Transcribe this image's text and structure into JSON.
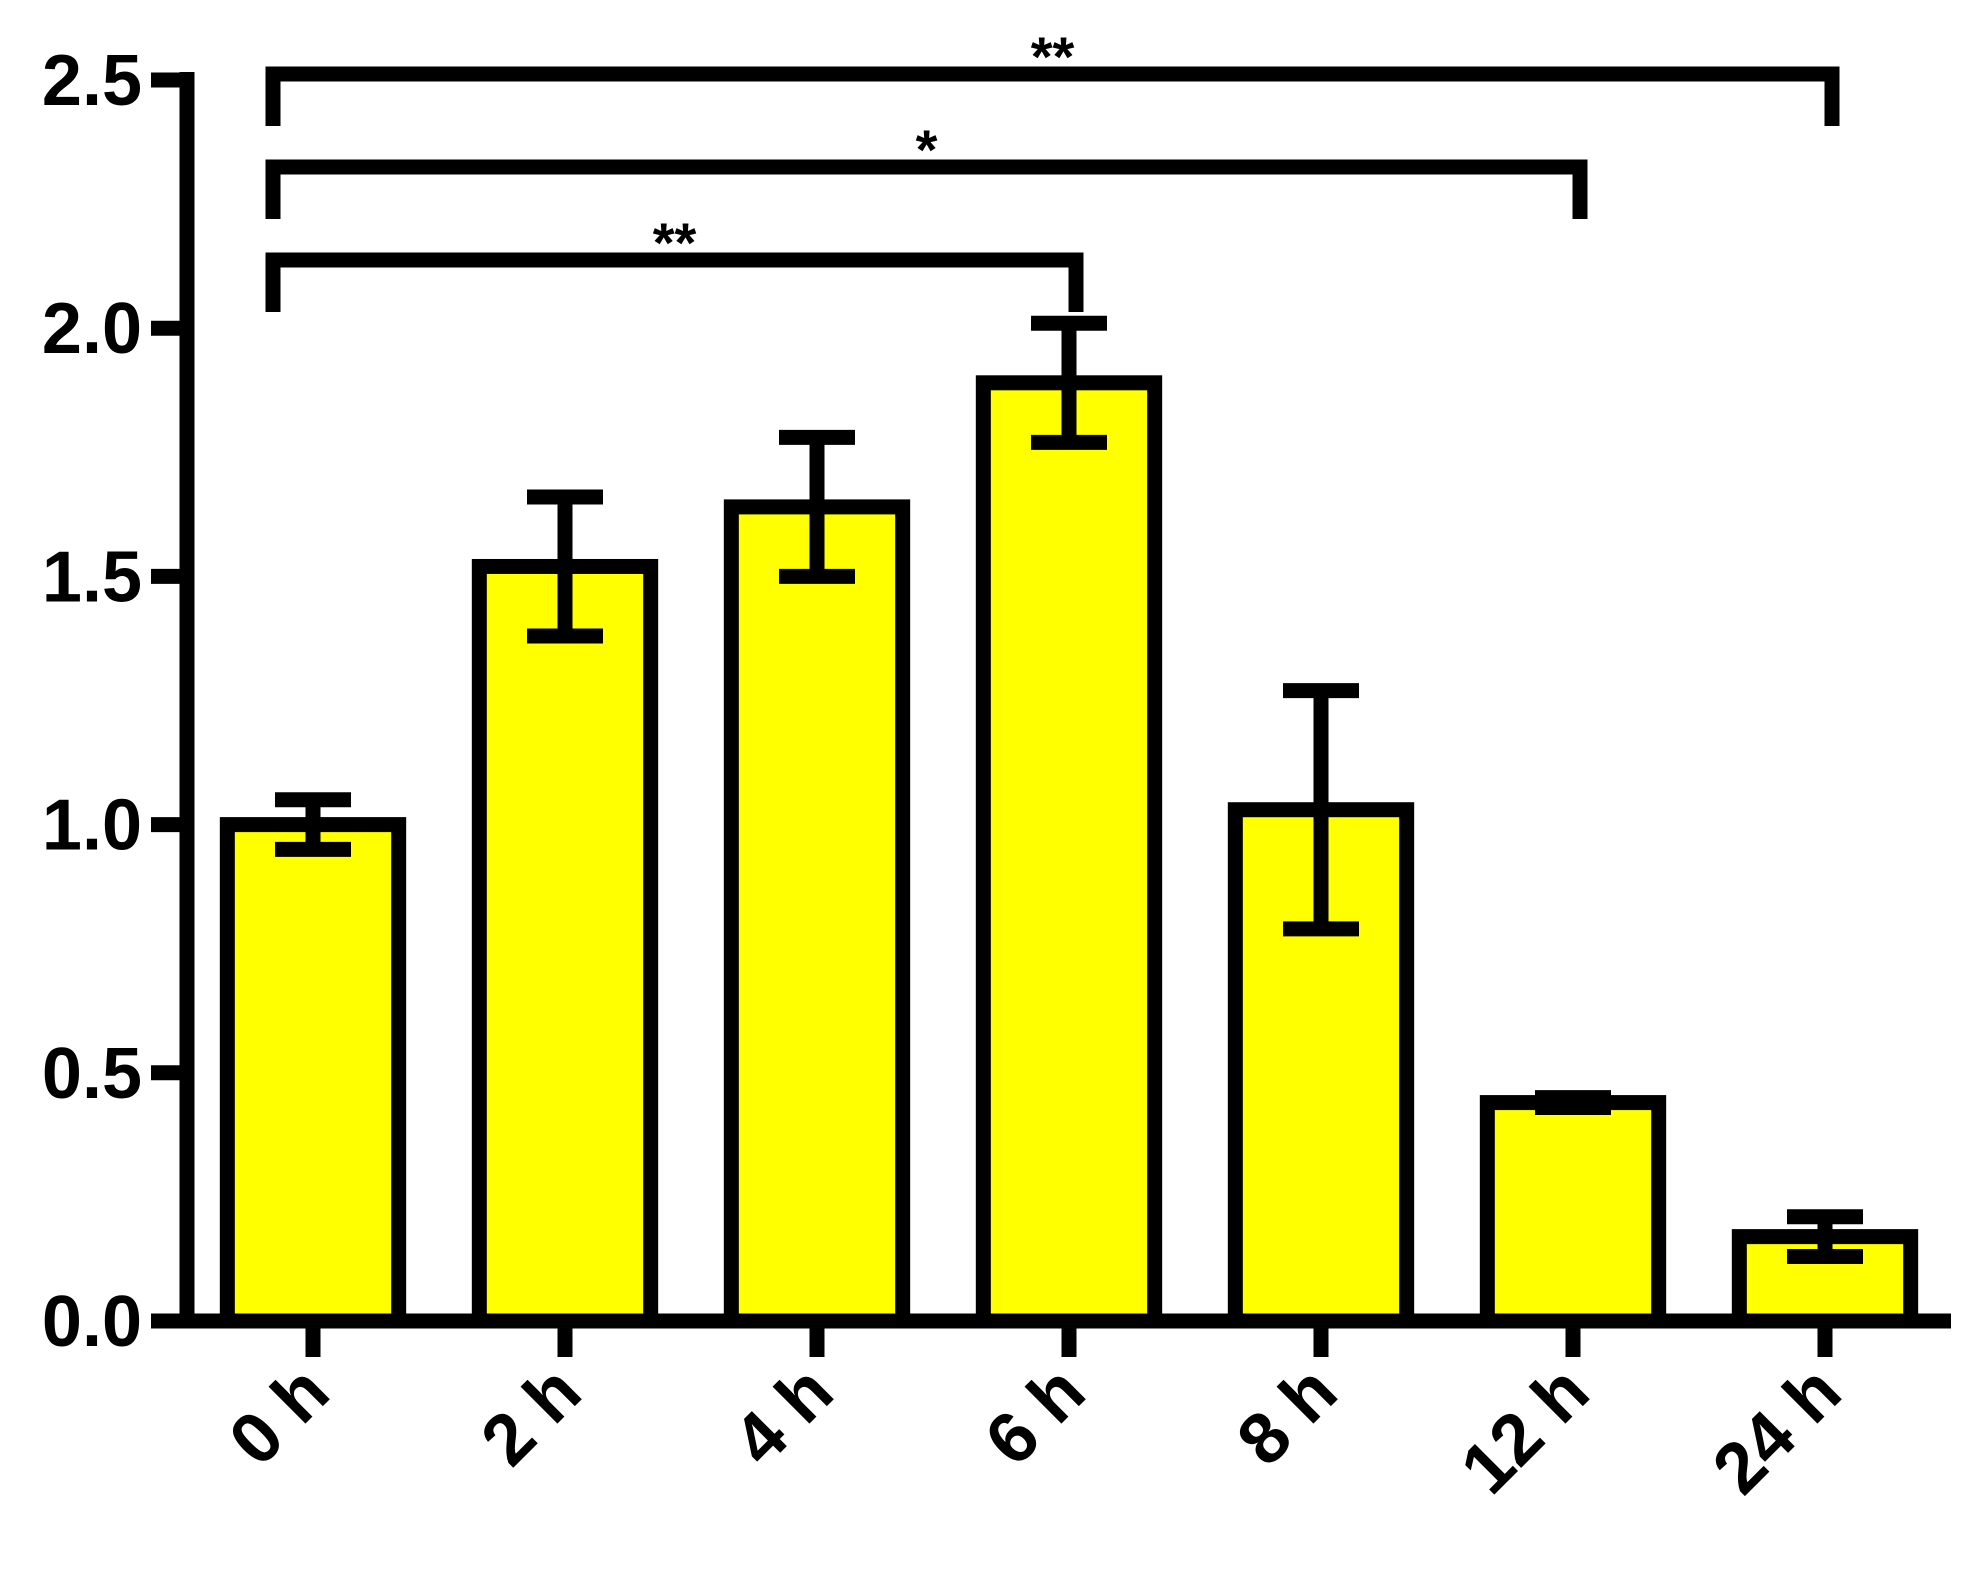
{
  "chart_data": {
    "type": "bar",
    "categories": [
      "0 h",
      "2 h",
      "4 h",
      "6 h",
      "8 h",
      "12 h",
      "24 h"
    ],
    "values": [
      1.0,
      1.52,
      1.64,
      1.89,
      1.03,
      0.44,
      0.17
    ],
    "errors": [
      0.05,
      0.14,
      0.14,
      0.12,
      0.24,
      0.01,
      0.04
    ],
    "color": "#ffff00",
    "ylim": [
      0,
      2.5
    ],
    "yticks": [
      {
        "value": 0,
        "label": "0.0"
      },
      0.5,
      {
        "value": 1,
        "label": "1.0"
      },
      1.5,
      {
        "value": 2,
        "label": "2.0"
      },
      2.5
    ],
    "annotations": [
      {
        "from": "0 h",
        "to": "24 h",
        "label": "**"
      },
      {
        "from": "0 h",
        "to": "12 h",
        "label": "*"
      },
      {
        "from": "0 h",
        "to": "6 h",
        "label": "**"
      }
    ]
  }
}
